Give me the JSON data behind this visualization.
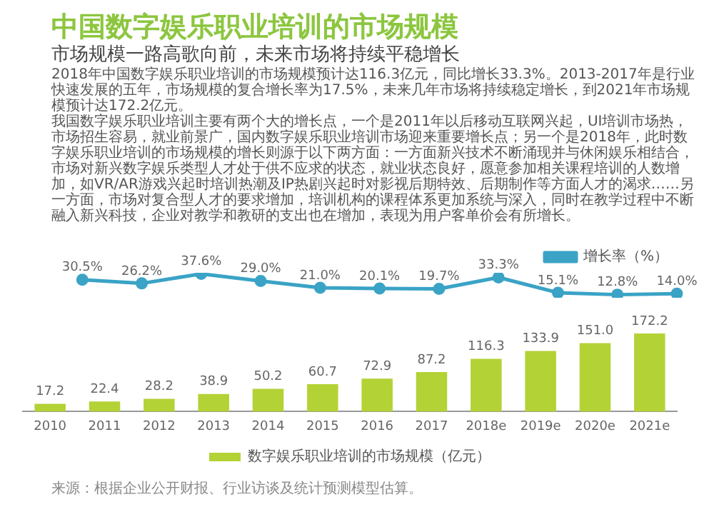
{
  "chart_data": [
    {
      "type": "line",
      "title": "中国数字娱乐职业培训的市场规模",
      "subtitle": "市场规模一路高歌向前，未来市场将持续平稳增长",
      "annotations": [
        "2018年中国数字娱乐职业培训的市场规模预计达116.3亿元，同比增长33.3%。2013-2017年是行业快速发展的五年，市场规模的复合增长率为17.5%，未来几年市场将持续稳定增长，到2021年市场规模预计达172.2亿元。",
        "我国数字娱乐职业培训主要有两个大的增长点，一个是2011年以后移动互联网兴起，UI培训市场热，市场招生容易，就业前景广，国内数字娱乐职业培训市场迎来重要增长点；另一个是2018年，此时数字娱乐职业培训的市场规模的增长则源于以下两方面：一方面新兴技术不断涌现并与休闲娱乐相结合，市场对新兴数字娱乐类型人才处于供不应求的状态，就业状态良好，愿意参加相关课程培训的人数增加，如VR/AR游戏兴起时培训热潮及IP热剧兴起时对影视后期特效、后期制作等方面人才的渴求……另一方面，市场对复合型人才的要求增加，培训机构的课程体系更加系统与深入，同时在教学过程中不断融入新兴科技，企业对教学和教研的支出也在增加，表现为用户客单价会有所增长。"
      ],
      "categories": [
        null,
        null,
        null,
        null,
        null,
        null,
        null,
        null,
        null,
        null,
        null,
        null
      ],
      "series": [
        {
          "name": "增长率（%）",
          "color": "#3aa3c6",
          "values": [
            null,
            30.5,
            26.2,
            37.6,
            29.0,
            21.0,
            20.1,
            19.7,
            33.3,
            15.1,
            12.8,
            14.0
          ],
          "value_labels": [
            null,
            "30.5%",
            "26.2%",
            "37.6%",
            "29.0%",
            "21.0%",
            "20.1%",
            "19.7%",
            "33.3%",
            "15.1%",
            "12.8%",
            "14.0%"
          ]
        }
      ],
      "legend": "top right",
      "marker": "circle"
    },
    {
      "type": "bar",
      "annotations": [
        "来源：根据企业公开财报、行业访谈及统计预测模型估算。"
      ],
      "categories": [
        "2010",
        "2011",
        "2012",
        "2013",
        "2014",
        "2015",
        "2016",
        "2017",
        "2018e",
        "2019e",
        "2020e",
        "2021e"
      ],
      "series": [
        {
          "name": "数字娱乐职业培训的市场规模（亿元）",
          "color": "#b3d235",
          "values": [
            17.2,
            22.4,
            28.2,
            38.9,
            50.2,
            60.7,
            72.9,
            87.2,
            116.3,
            133.9,
            151.0,
            172.2
          ],
          "value_labels": [
            "17.2",
            "22.4",
            "28.2",
            "38.9",
            "50.2",
            "60.7",
            "72.9",
            "87.2",
            "116.3",
            "133.9",
            "151.0",
            "172.2"
          ]
        }
      ],
      "legend": "bottom",
      "grid": false
    }
  ]
}
